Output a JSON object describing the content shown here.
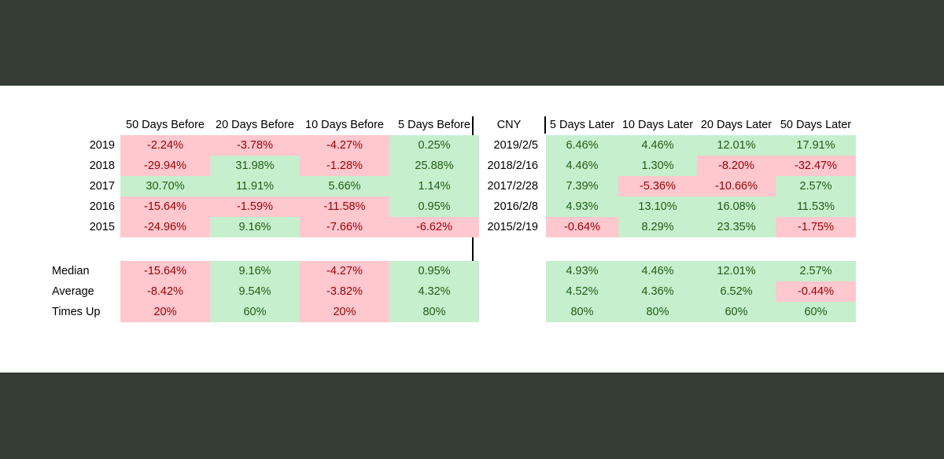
{
  "left_headers": [
    "50 Days Before",
    "20  Days Before",
    "10 Days Before",
    "5 Days Before"
  ],
  "right_headers": [
    "CNY",
    "5 Days Later",
    "10 Days Later",
    "20 Days Later",
    "50 Days Later"
  ],
  "rows": [
    {
      "year": "2019",
      "before": [
        "-2.24%",
        "-3.78%",
        "-4.27%",
        "0.25%"
      ],
      "cny": "2019/2/5",
      "after": [
        "6.46%",
        "4.46%",
        "12.01%",
        "17.91%"
      ]
    },
    {
      "year": "2018",
      "before": [
        "-29.94%",
        "31.98%",
        "-1.28%",
        "25.88%"
      ],
      "cny": "2018/2/16",
      "after": [
        "4.46%",
        "1.30%",
        "-8.20%",
        "-32.47%"
      ]
    },
    {
      "year": "2017",
      "before": [
        "30.70%",
        "11.91%",
        "5.66%",
        "1.14%"
      ],
      "cny": "2017/2/28",
      "after": [
        "7.39%",
        "-5.36%",
        "-10.66%",
        "2.57%"
      ]
    },
    {
      "year": "2016",
      "before": [
        "-15.64%",
        "-1.59%",
        "-11.58%",
        "0.95%"
      ],
      "cny": "2016/2/8",
      "after": [
        "4.93%",
        "13.10%",
        "16.08%",
        "11.53%"
      ]
    },
    {
      "year": "2015",
      "before": [
        "-24.96%",
        "9.16%",
        "-7.66%",
        "-6.62%"
      ],
      "cny": "2015/2/19",
      "after": [
        "-0.64%",
        "8.29%",
        "23.35%",
        "-1.75%"
      ]
    }
  ],
  "stats": [
    {
      "label": "Median",
      "before": [
        "-15.64%",
        "9.16%",
        "-4.27%",
        "0.95%"
      ],
      "after": [
        "4.93%",
        "4.46%",
        "12.01%",
        "2.57%"
      ]
    },
    {
      "label": "Average",
      "before": [
        "-8.42%",
        "9.54%",
        "-3.82%",
        "4.32%"
      ],
      "after": [
        "4.52%",
        "4.36%",
        "6.52%",
        "-0.44%"
      ]
    },
    {
      "label": "Times Up",
      "before": [
        "20%",
        "60%",
        "20%",
        "80%"
      ],
      "after": [
        "80%",
        "80%",
        "60%",
        "60%"
      ]
    }
  ],
  "colors": {
    "up_fill": "#c6efce",
    "up_text": "#1f5e12",
    "down_fill": "#ffc7ce",
    "down_text": "#9c0006",
    "frame": "#343c33"
  }
}
